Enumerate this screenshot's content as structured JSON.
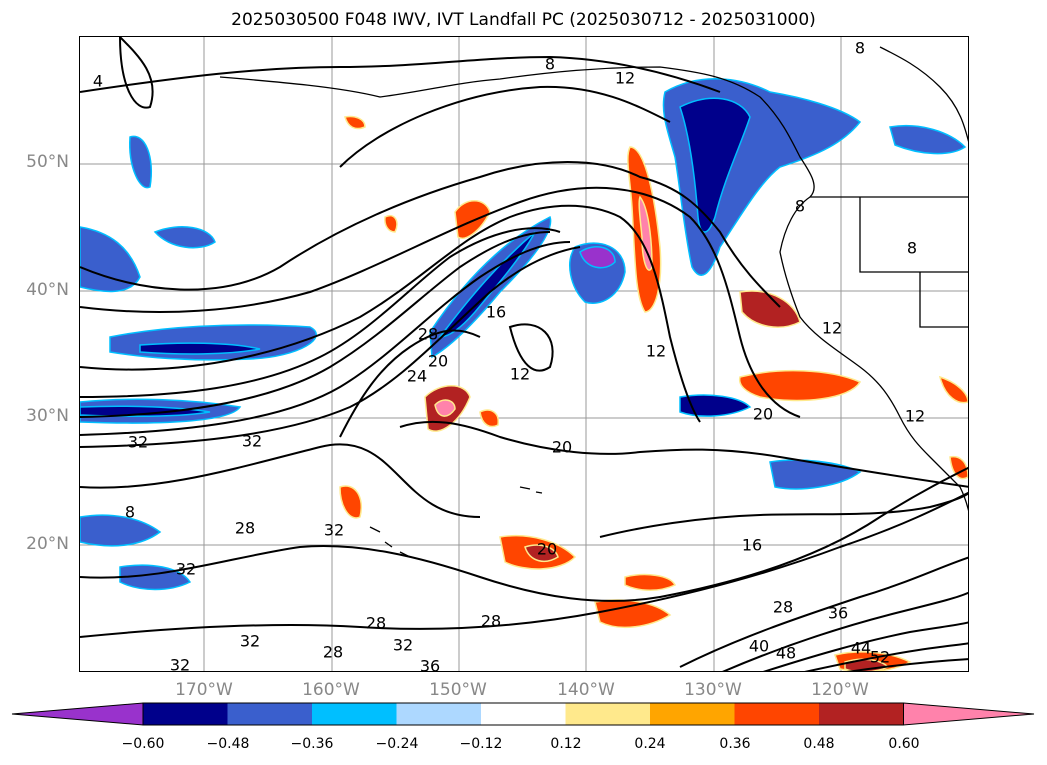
{
  "title": "2025030500 F048 IWV, IVT Landfall PC (2025030712 - 2025031000)",
  "axes": {
    "lat_ticks": [
      "50°N",
      "40°N",
      "30°N",
      "20°N"
    ],
    "lon_ticks": [
      "170°W",
      "160°W",
      "150°W",
      "140°W",
      "130°W",
      "120°W"
    ]
  },
  "colorbar": {
    "ticks": [
      "−0.60",
      "−0.48",
      "−0.36",
      "−0.24",
      "−0.12",
      "0.12",
      "0.24",
      "0.36",
      "0.48",
      "0.60"
    ],
    "colors": [
      "#9932cc",
      "#00008b",
      "#3a5fcd",
      "#00bfff",
      "#add8ff",
      "#ffffff",
      "#ffe98c",
      "#ffa500",
      "#ff4500",
      "#b22222",
      "#ff82ab"
    ]
  },
  "contour_labels": [
    {
      "text": "4"
    },
    {
      "text": "8"
    },
    {
      "text": "8"
    },
    {
      "text": "12"
    },
    {
      "text": "8"
    },
    {
      "text": "8"
    },
    {
      "text": "16"
    },
    {
      "text": "12"
    },
    {
      "text": "28"
    },
    {
      "text": "24"
    },
    {
      "text": "20"
    },
    {
      "text": "12"
    },
    {
      "text": "20"
    },
    {
      "text": "20"
    },
    {
      "text": "12"
    },
    {
      "text": "12"
    },
    {
      "text": "32"
    },
    {
      "text": "32"
    },
    {
      "text": "8"
    },
    {
      "text": "28"
    },
    {
      "text": "32"
    },
    {
      "text": "32"
    },
    {
      "text": "16"
    },
    {
      "text": "20"
    },
    {
      "text": "28"
    },
    {
      "text": "36"
    },
    {
      "text": "28"
    },
    {
      "text": "28"
    },
    {
      "text": "32"
    },
    {
      "text": "32"
    },
    {
      "text": "36"
    },
    {
      "text": "28"
    },
    {
      "text": "32"
    },
    {
      "text": "40"
    },
    {
      "text": "48"
    },
    {
      "text": "44"
    },
    {
      "text": "52"
    }
  ]
}
